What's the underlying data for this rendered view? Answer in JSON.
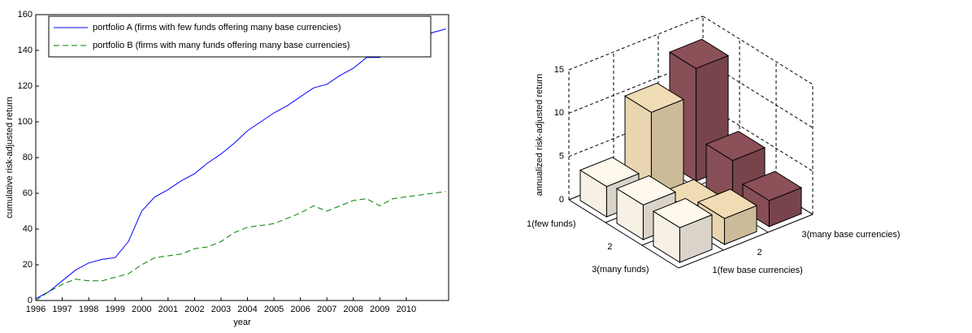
{
  "chart_data": [
    {
      "type": "line",
      "x_label": "year",
      "y_label": "cumulative risk-adjusted return",
      "x": [
        1996,
        1996.5,
        1997,
        1997.5,
        1998,
        1998.5,
        1999,
        1999.5,
        2000,
        2000.5,
        2001,
        2001.5,
        2002,
        2002.5,
        2003,
        2003.5,
        2004,
        2004.5,
        2005,
        2005.5,
        2006,
        2006.5,
        2007,
        2007.5,
        2008,
        2008.5,
        2009,
        2009.5,
        2010,
        2010.5,
        2011,
        2011.5
      ],
      "series": [
        {
          "name": "portfolio A (firms with few funds offering many base currencies)",
          "color": "#0000ff",
          "style": "solid",
          "values": [
            1,
            5,
            11,
            17,
            21,
            23,
            24,
            33,
            50,
            58,
            62,
            67,
            71,
            77,
            82,
            88,
            95,
            100,
            105,
            109,
            114,
            119,
            121,
            126,
            130,
            136,
            136,
            141,
            144,
            146,
            150,
            152
          ]
        },
        {
          "name": "portfolio B (firms with many funds offering many base currencies)",
          "color": "#008000",
          "style": "dashed",
          "values": [
            0,
            5,
            9,
            12,
            11,
            11,
            13,
            15,
            20,
            24,
            25,
            26,
            29,
            30,
            33,
            38,
            41,
            42,
            43,
            46,
            49,
            53,
            50,
            53,
            56,
            57,
            53,
            57,
            58,
            59,
            60,
            61
          ]
        }
      ],
      "xlim": [
        1996,
        2011.6
      ],
      "xticks": [
        1996,
        1997,
        1998,
        1999,
        2000,
        2001,
        2002,
        2003,
        2004,
        2005,
        2006,
        2007,
        2008,
        2009,
        2010
      ],
      "ylim": [
        0,
        160
      ],
      "yticks": [
        0,
        20,
        40,
        60,
        80,
        100,
        120,
        140,
        160
      ],
      "legend": "upper left"
    },
    {
      "type": "bar3d",
      "z_label": "annualized risk-adjusted return",
      "categories": [
        "1(few funds)",
        "2",
        "3(many funds)"
      ],
      "series": [
        {
          "name": "1(few base currencies)",
          "color": "#fff8ec",
          "values": [
            3.5,
            4,
            4
          ]
        },
        {
          "name": "2",
          "color": "#f0dcb4",
          "values": [
            10,
            1.5,
            3
          ]
        },
        {
          "name": "3(many base currencies)",
          "color": "#8c5058",
          "values": [
            13,
            5,
            3
          ]
        }
      ],
      "zlim": [
        0,
        15
      ],
      "zticks": [
        0,
        5,
        10,
        15
      ]
    }
  ]
}
